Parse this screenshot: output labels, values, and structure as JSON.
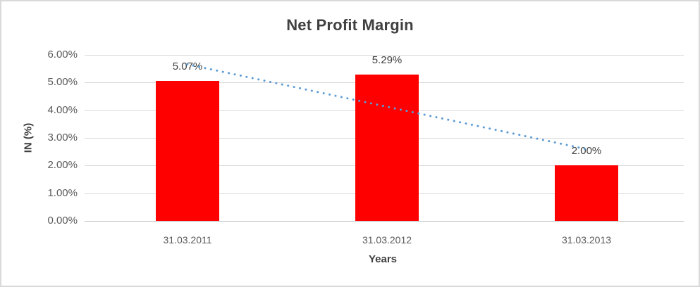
{
  "frame": {
    "background": "#FFFFFF",
    "border_color": "#D9D9D9"
  },
  "chart_data": {
    "type": "bar",
    "title": "Net Profit Margin",
    "xlabel": "Years",
    "ylabel": "IN (%)",
    "categories": [
      "31.03.2011",
      "31.03.2012",
      "31.03.2013"
    ],
    "series": [
      {
        "name": "Net Profit Margin",
        "values": [
          5.07,
          5.29,
          2.0
        ]
      }
    ],
    "data_labels": [
      "5.07%",
      "5.29%",
      "2.00%"
    ],
    "ylim": [
      0,
      6
    ],
    "yticks": [
      0,
      1,
      2,
      3,
      4,
      5,
      6
    ],
    "ytick_labels": [
      "0.00%",
      "1.00%",
      "2.00%",
      "3.00%",
      "4.00%",
      "5.00%",
      "6.00%"
    ],
    "grid": "horizontal",
    "legend": "none",
    "trendline": {
      "type": "linear",
      "style": "dotted",
      "start_value_pct": 5.66,
      "end_value_pct": 2.59
    },
    "colors": {
      "bar": "#FF0000",
      "gridline": "#D9D9D9",
      "axis_line": "#BFBFBF",
      "title": "#404040",
      "axis_title": "#404040",
      "tick_label": "#595959",
      "data_label": "#404040",
      "trendline": "#5B9BD5"
    }
  }
}
